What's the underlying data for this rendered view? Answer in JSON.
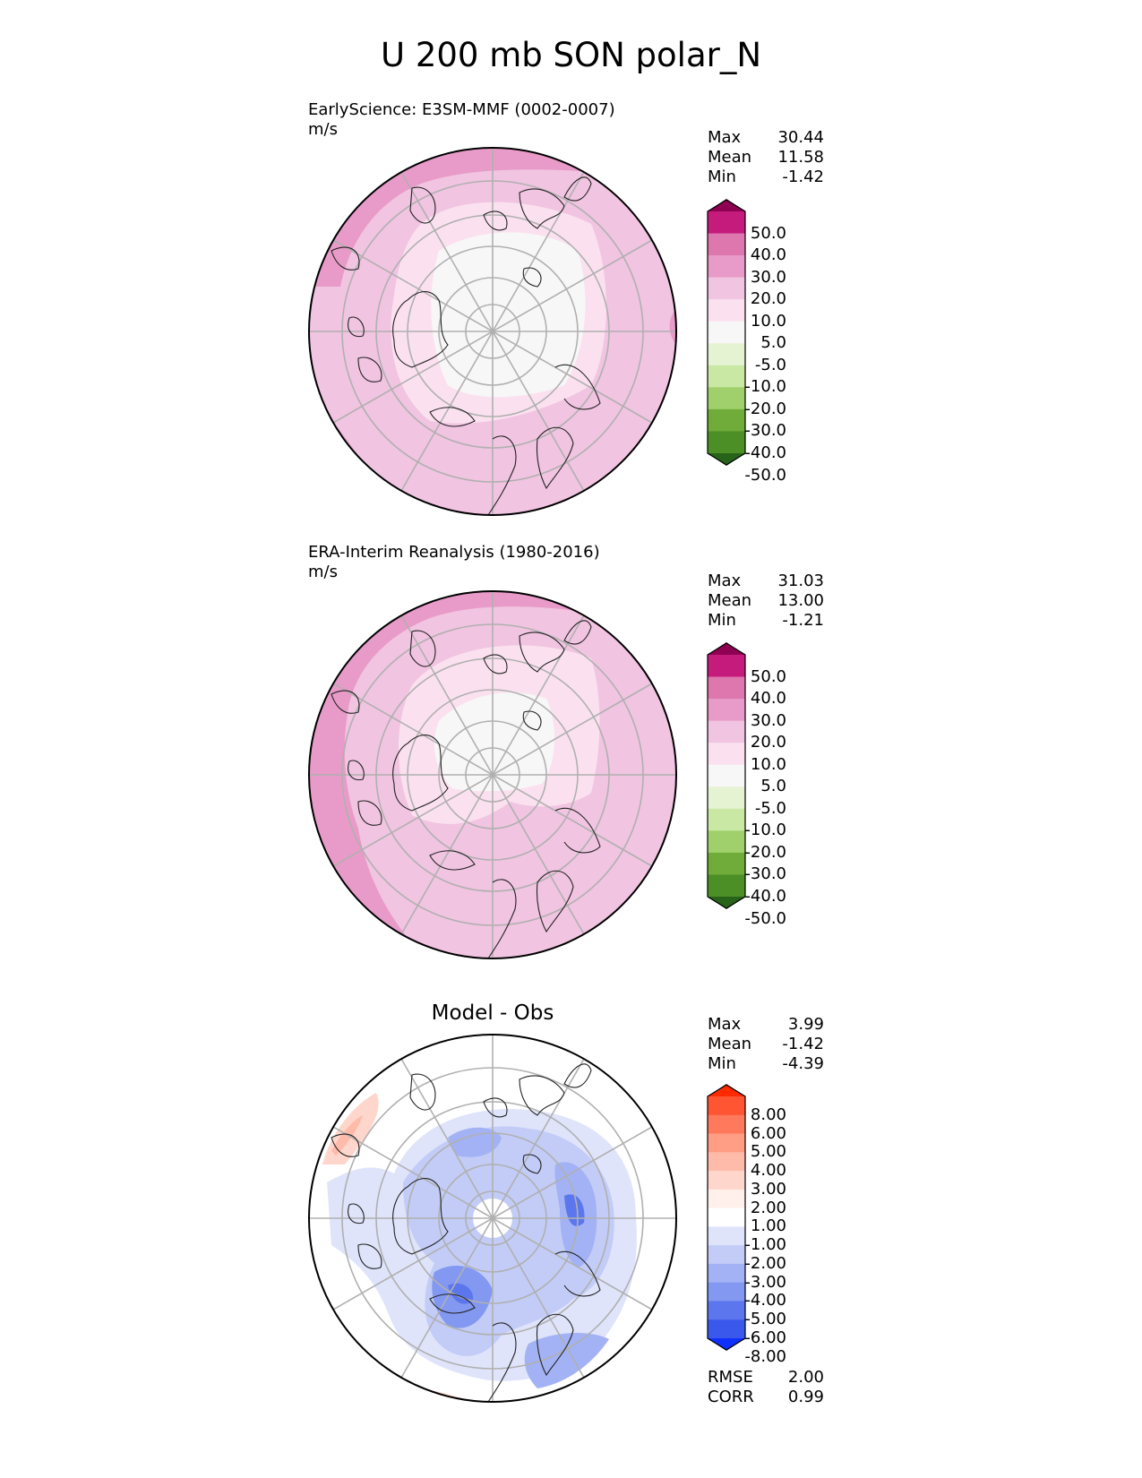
{
  "figure": {
    "title": "U 200 mb SON polar_N"
  },
  "panels": [
    {
      "id": "test",
      "title_line1": "EarlyScience: E3SM-MMF (0002-0007)",
      "title_line2": "m/s",
      "stats": [
        {
          "label": "Max",
          "value": "30.44"
        },
        {
          "label": "Mean",
          "value": "11.58"
        },
        {
          "label": "Min",
          "value": "-1.42"
        }
      ],
      "colorbar": {
        "ticks": [
          "50.0",
          "40.0",
          "30.0",
          "20.0",
          "10.0",
          "5.0",
          "-5.0",
          "-10.0",
          "-20.0",
          "-30.0",
          "-40.0",
          "-50.0"
        ],
        "colors": [
          "#8e0152",
          "#c51b7d",
          "#de77ae",
          "#e89bc8",
          "#f1c4e1",
          "#fbe1ef",
          "#f7f7f7",
          "#e6f3d2",
          "#c9e8a4",
          "#9fd06b",
          "#70ac3a",
          "#4d8f27",
          "#27641a"
        ]
      }
    },
    {
      "id": "ref",
      "title_line1": "ERA-Interim Reanalysis (1980-2016)",
      "title_line2": "m/s",
      "stats": [
        {
          "label": "Max",
          "value": "31.03"
        },
        {
          "label": "Mean",
          "value": "13.00"
        },
        {
          "label": "Min",
          "value": "-1.21"
        }
      ],
      "colorbar": {
        "ticks": [
          "50.0",
          "40.0",
          "30.0",
          "20.0",
          "10.0",
          "5.0",
          "-5.0",
          "-10.0",
          "-20.0",
          "-30.0",
          "-40.0",
          "-50.0"
        ],
        "colors": [
          "#8e0152",
          "#c51b7d",
          "#de77ae",
          "#e89bc8",
          "#f1c4e1",
          "#fbe1ef",
          "#f7f7f7",
          "#e6f3d2",
          "#c9e8a4",
          "#9fd06b",
          "#70ac3a",
          "#4d8f27",
          "#27641a"
        ]
      }
    },
    {
      "id": "diff",
      "title_center": "Model - Obs",
      "stats": [
        {
          "label": "Max",
          "value": "3.99"
        },
        {
          "label": "Mean",
          "value": "-1.42"
        },
        {
          "label": "Min",
          "value": "-4.39"
        }
      ],
      "extra_stats": [
        {
          "label": "RMSE",
          "value": "2.00"
        },
        {
          "label": "CORR",
          "value": "0.99"
        }
      ],
      "colorbar": {
        "ticks": [
          "8.00",
          "6.00",
          "5.00",
          "4.00",
          "3.00",
          "2.00",
          "1.00",
          "-1.00",
          "-2.00",
          "-3.00",
          "-4.00",
          "-5.00",
          "-6.00",
          "-8.00"
        ],
        "colors": [
          "#ff2a00",
          "#ff5533",
          "#ff7a5c",
          "#ff9d85",
          "#ffbbaa",
          "#ffd6cc",
          "#fff0eb",
          "#ffffff",
          "#dfe4fb",
          "#c2ccf7",
          "#a3b2f4",
          "#8398f1",
          "#5c77ee",
          "#3a59ec",
          "#1030ff"
        ]
      }
    }
  ],
  "chart_data": [
    {
      "type": "heatmap",
      "title": "EarlyScience: E3SM-MMF (0002-0007)",
      "units": "m/s",
      "projection": "north polar stereographic",
      "levels": [
        -50,
        -40,
        -30,
        -20,
        -10,
        -5,
        5,
        10,
        20,
        30,
        40,
        50
      ],
      "max": 30.44,
      "mean": 11.58,
      "min": -1.42
    },
    {
      "type": "heatmap",
      "title": "ERA-Interim Reanalysis (1980-2016)",
      "units": "m/s",
      "projection": "north polar stereographic",
      "levels": [
        -50,
        -40,
        -30,
        -20,
        -10,
        -5,
        5,
        10,
        20,
        30,
        40,
        50
      ],
      "max": 31.03,
      "mean": 13.0,
      "min": -1.21
    },
    {
      "type": "heatmap",
      "title": "Model - Obs",
      "projection": "north polar stereographic",
      "levels": [
        -8,
        -6,
        -5,
        -4,
        -3,
        -2,
        -1,
        1,
        2,
        3,
        4,
        5,
        6,
        8
      ],
      "max": 3.99,
      "mean": -1.42,
      "min": -4.39,
      "rmse": 2.0,
      "corr": 0.99
    }
  ]
}
